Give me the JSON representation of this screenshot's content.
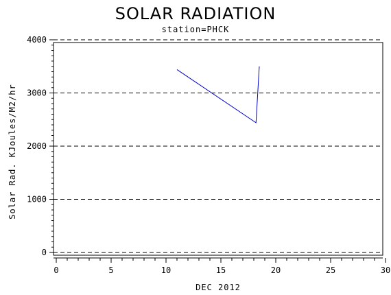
{
  "chart_data": {
    "type": "line",
    "title": "SOLAR RADIATION",
    "subtitle": "station=PHCK",
    "xlabel": "DEC 2012",
    "ylabel": "Solar Rad. KJoules/M2/hr",
    "xlim": [
      0,
      30
    ],
    "ylim": [
      0,
      4000
    ],
    "x_ticks": [
      0,
      5,
      10,
      15,
      20,
      25,
      30
    ],
    "y_ticks": [
      0,
      1000,
      2000,
      3000,
      4000
    ],
    "grid": "horizontal-dashed",
    "series": [
      {
        "color": "#0000cc",
        "x": [
          11.0,
          18.2,
          18.5
        ],
        "y": [
          3440,
          2440,
          3500
        ]
      }
    ]
  }
}
